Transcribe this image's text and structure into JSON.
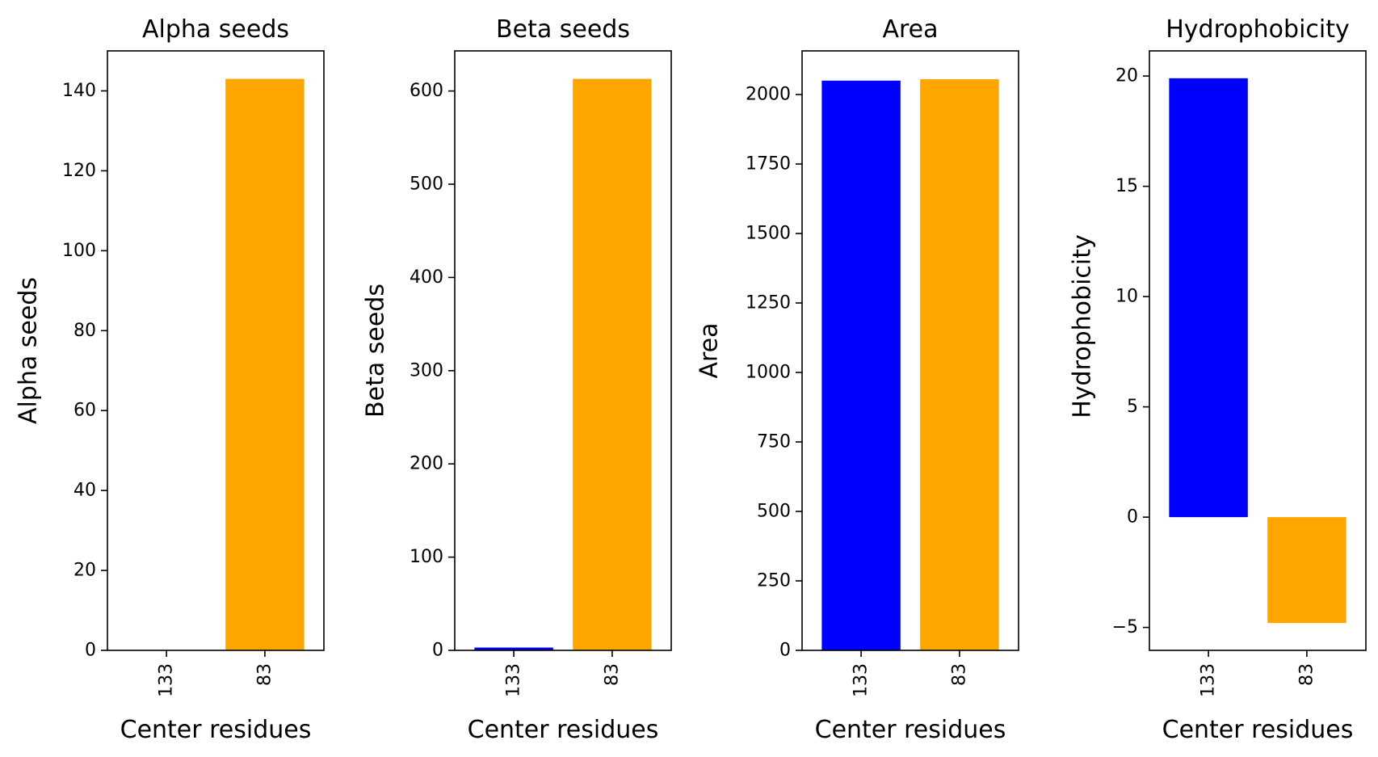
{
  "chart_data": [
    {
      "type": "bar",
      "title": "Alpha seeds",
      "xlabel": "Center residues",
      "ylabel": "Alpha seeds",
      "categories": [
        "133",
        "83"
      ],
      "values": [
        0,
        143
      ],
      "colors": [
        "#0000ff",
        "#ffa500"
      ],
      "ylim": [
        0,
        150
      ],
      "yticks": [
        0,
        20,
        40,
        60,
        80,
        100,
        120,
        140
      ]
    },
    {
      "type": "bar",
      "title": "Beta seeds",
      "xlabel": "Center residues",
      "ylabel": "Beta seeds",
      "categories": [
        "133",
        "83"
      ],
      "values": [
        3,
        613
      ],
      "colors": [
        "#0000ff",
        "#ffa500"
      ],
      "ylim": [
        0,
        643
      ],
      "yticks": [
        0,
        100,
        200,
        300,
        400,
        500,
        600
      ]
    },
    {
      "type": "bar",
      "title": "Area",
      "xlabel": "Center residues",
      "ylabel": "Area",
      "categories": [
        "133",
        "83"
      ],
      "values": [
        2050,
        2055
      ],
      "colors": [
        "#0000ff",
        "#ffa500"
      ],
      "ylim": [
        0,
        2157
      ],
      "yticks": [
        0,
        250,
        500,
        750,
        1000,
        1250,
        1500,
        1750,
        2000
      ]
    },
    {
      "type": "bar",
      "title": "Hydrophobicity",
      "xlabel": "Center residues",
      "ylabel": "Hydrophobicity",
      "categories": [
        "133",
        "83"
      ],
      "values": [
        19.9,
        -4.8
      ],
      "colors": [
        "#0000ff",
        "#ffa500"
      ],
      "ylim": [
        -6.04,
        21.14
      ],
      "yticks": [
        -5,
        0,
        5,
        10,
        15,
        20
      ],
      "ytick_labels": [
        "−5",
        "0",
        "5",
        "10",
        "15",
        "20"
      ]
    }
  ]
}
